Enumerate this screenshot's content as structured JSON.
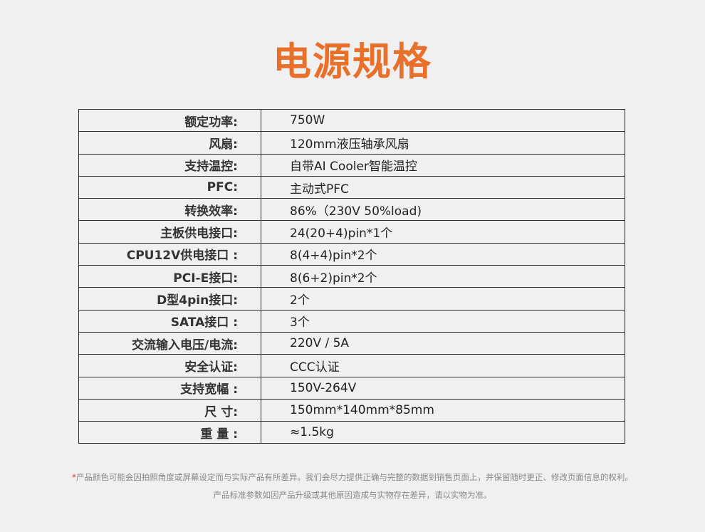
{
  "title": "电源规格",
  "accent_color": "#e8702a",
  "specs": [
    {
      "label": "额定功率:",
      "value": "750W"
    },
    {
      "label": "风扇:",
      "value": "120mm液压轴承风扇"
    },
    {
      "label": "支持温控:",
      "value": "自带AI Cooler智能温控"
    },
    {
      "label": "PFC:",
      "value": "主动式PFC"
    },
    {
      "label": "转换效率:",
      "value": "86%（230V 50%load)"
    },
    {
      "label": "主板供电接口:",
      "value": "24(20+4)pin*1个"
    },
    {
      "label": "CPU12V供电接口 :",
      "value": "8(4+4)pin*2个"
    },
    {
      "label": "PCI-E接口:",
      "value": "8(6+2)pin*2个"
    },
    {
      "label": "D型4pin接口:",
      "value": "2个"
    },
    {
      "label": "SATA接口 :",
      "value": "3个"
    },
    {
      "label": "交流输入电压/电流:",
      "value": "220V / 5A"
    },
    {
      "label": "安全认证:",
      "value": "CCC认证"
    },
    {
      "label": "支持宽幅 :",
      "value": "150V-264V"
    },
    {
      "label": "尺 寸:",
      "value": "150mm*140mm*85mm"
    },
    {
      "label": "重 量 :",
      "value": "≈1.5kg"
    }
  ],
  "footer": {
    "star": "*",
    "line1": "产品颜色可能会因拍照角度或屏幕设定而与实际产品有所差异。我们会尽力提供正确与完整的数据到销售页面上，并保留随时更正、修改页面信息的权利。",
    "line2": "产品标准参数如因产品升级或其他原因造成与实物存在差异，请以实物为准。"
  }
}
